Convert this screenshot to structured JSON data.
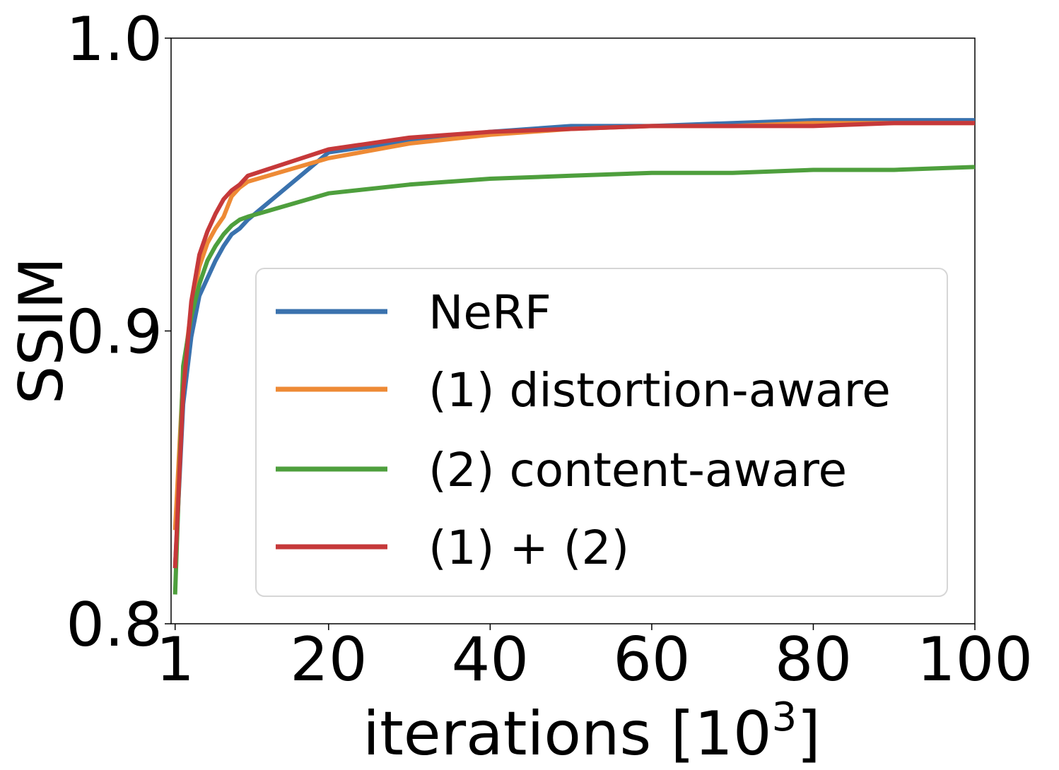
{
  "chart_data": {
    "type": "line",
    "xlabel": "iterations [10",
    "xlabel_superscript": "3",
    "xlabel_close": "]",
    "ylabel": "SSIM",
    "xlim": [
      0.5,
      100
    ],
    "ylim": [
      0.8,
      1.0
    ],
    "xticks": [
      1,
      20,
      40,
      60,
      80,
      100
    ],
    "xtick_labels": [
      "1",
      "20",
      "40",
      "60",
      "80",
      "100"
    ],
    "yticks": [
      0.8,
      0.9,
      1.0
    ],
    "ytick_labels": [
      "0.8",
      "0.9",
      "1.0"
    ],
    "grid": false,
    "legend_position": "lower-right",
    "series": [
      {
        "name": "NeRF",
        "color": "#3a72ae",
        "x": [
          1,
          2,
          3,
          4,
          5,
          6,
          7,
          8,
          9,
          10,
          20,
          30,
          40,
          50,
          60,
          70,
          80,
          90,
          100
        ],
        "y": [
          0.819,
          0.875,
          0.898,
          0.912,
          0.918,
          0.924,
          0.929,
          0.933,
          0.935,
          0.938,
          0.961,
          0.965,
          0.968,
          0.97,
          0.97,
          0.971,
          0.972,
          0.972,
          0.972
        ]
      },
      {
        "name": "(1) distortion-aware",
        "color": "#ee8a35",
        "x": [
          1,
          2,
          3,
          4,
          5,
          6,
          7,
          8,
          9,
          10,
          20,
          30,
          40,
          50,
          60,
          70,
          80,
          90,
          100
        ],
        "y": [
          0.832,
          0.885,
          0.908,
          0.922,
          0.93,
          0.935,
          0.939,
          0.946,
          0.949,
          0.951,
          0.959,
          0.964,
          0.967,
          0.969,
          0.97,
          0.97,
          0.971,
          0.971,
          0.971
        ]
      },
      {
        "name": "(2) content-aware",
        "color": "#4e9f3d",
        "x": [
          1,
          2,
          3,
          4,
          5,
          6,
          7,
          8,
          9,
          10,
          20,
          30,
          40,
          50,
          60,
          70,
          80,
          90,
          100
        ],
        "y": [
          0.81,
          0.888,
          0.905,
          0.916,
          0.924,
          0.929,
          0.933,
          0.936,
          0.938,
          0.939,
          0.947,
          0.95,
          0.952,
          0.953,
          0.954,
          0.954,
          0.955,
          0.955,
          0.956
        ]
      },
      {
        "name": "(1) + (2)",
        "color": "#c6393a",
        "x": [
          1,
          2,
          3,
          4,
          5,
          6,
          7,
          8,
          9,
          10,
          20,
          30,
          40,
          50,
          60,
          70,
          80,
          90,
          100
        ],
        "y": [
          0.819,
          0.879,
          0.91,
          0.926,
          0.934,
          0.94,
          0.945,
          0.948,
          0.95,
          0.953,
          0.962,
          0.966,
          0.968,
          0.969,
          0.97,
          0.97,
          0.97,
          0.971,
          0.971
        ]
      }
    ]
  }
}
